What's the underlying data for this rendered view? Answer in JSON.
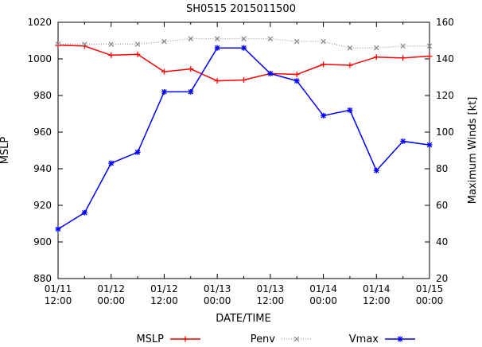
{
  "chart_data": {
    "type": "line",
    "title": "SH0515 2015011500",
    "xlabel": "DATE/TIME",
    "ylabel_left": "MSLP",
    "ylabel_right": "Maximum Winds [kt]",
    "x_ticks": [
      "01/11\n12:00",
      "01/12\n00:00",
      "01/12\n12:00",
      "01/13\n00:00",
      "01/13\n12:00",
      "01/14\n00:00",
      "01/14\n12:00",
      "01/15\n00:00"
    ],
    "x_hours": [
      0,
      6,
      12,
      18,
      24,
      30,
      36,
      42,
      48,
      54,
      60,
      66,
      72,
      78,
      84
    ],
    "xlim": [
      0,
      84
    ],
    "ylim_left": [
      880,
      1020
    ],
    "ylim_right": [
      20,
      160
    ],
    "left_ticks": [
      880,
      900,
      920,
      940,
      960,
      980,
      1000,
      1020
    ],
    "right_ticks": [
      20,
      40,
      60,
      80,
      100,
      120,
      140,
      160
    ],
    "legend_position": "bottom",
    "series": [
      {
        "name": "MSLP",
        "axis": "left",
        "color": "#ff0000",
        "marker": "plus",
        "values": [
          1007.5,
          1007,
          1002,
          1002.5,
          993,
          994.5,
          988,
          988.5,
          992,
          991.5,
          997,
          996.5,
          1001,
          1000.5,
          1001.5
        ]
      },
      {
        "name": "Penv",
        "axis": "left",
        "color": "#888888",
        "marker": "x",
        "dashed": true,
        "values": [
          1008,
          1008,
          1008,
          1008,
          1009.5,
          1011,
          1011,
          1011,
          1011,
          1009.5,
          1009.5,
          1006,
          1006,
          1007,
          1007
        ]
      },
      {
        "name": "Vmax",
        "axis": "right",
        "color": "#0000ff",
        "marker": "asterisk",
        "values": [
          47,
          56,
          83,
          89,
          122,
          122,
          146,
          146,
          132,
          128,
          109,
          112,
          79,
          95,
          93
        ]
      }
    ]
  }
}
